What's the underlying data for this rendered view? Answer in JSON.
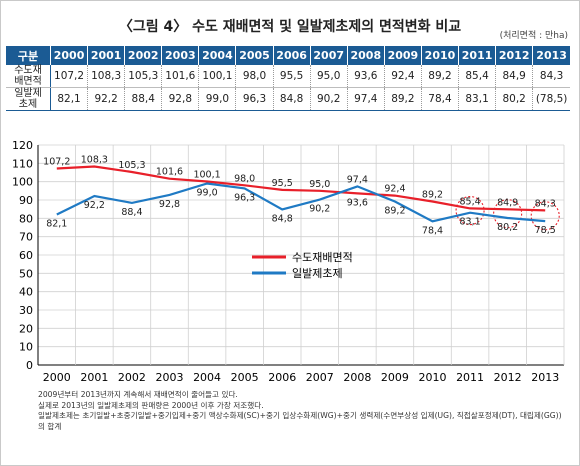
{
  "title": "〈그림 4〉 수도 재배면적 및 일발제초제의 면적변화 비교",
  "unit": "(처리면적 : 만ha)",
  "table": {
    "header": "구분",
    "years": [
      "2000",
      "2001",
      "2002",
      "2003",
      "2004",
      "2005",
      "2006",
      "2007",
      "2008",
      "2009",
      "2010",
      "2011",
      "2012",
      "2013"
    ],
    "rows": [
      {
        "label_line1": "수도재",
        "label_line2": "배면적",
        "values": [
          "107,2",
          "108,3",
          "105,3",
          "101,6",
          "100,1",
          "98,0",
          "95,5",
          "95,0",
          "93,6",
          "92,4",
          "89,2",
          "85,4",
          "84,9",
          "84,3"
        ]
      },
      {
        "label_line1": "일발제",
        "label_line2": "초제",
        "values": [
          "82,1",
          "92,2",
          "88,4",
          "92,8",
          "99,0",
          "96,3",
          "84,8",
          "90,2",
          "97,4",
          "89,2",
          "78,4",
          "83,1",
          "80,2",
          "(78,5)"
        ]
      }
    ]
  },
  "chart_data": {
    "type": "line",
    "x": [
      "2000",
      "2001",
      "2002",
      "2003",
      "2004",
      "2005",
      "2006",
      "2007",
      "2008",
      "2009",
      "2010",
      "2011",
      "2012",
      "2013"
    ],
    "ylim": [
      0,
      120
    ],
    "yticks": [
      0,
      10,
      20,
      30,
      40,
      50,
      60,
      70,
      80,
      90,
      100,
      110,
      120
    ],
    "grid": true,
    "legend_position": "center",
    "series": [
      {
        "name": "수도재배면적",
        "color": "#e8202a",
        "values": [
          107.2,
          108.3,
          105.3,
          101.6,
          100.1,
          98.0,
          95.5,
          95.0,
          93.6,
          92.4,
          89.2,
          85.4,
          84.9,
          84.3
        ],
        "labels": [
          "107,2",
          "108,3",
          "105,3",
          "101,6",
          "100,1",
          "98,0",
          "95,5",
          "95,0",
          "93,6",
          "92,4",
          "89,2",
          "85,4",
          "84,9",
          "84,3"
        ]
      },
      {
        "name": "일발제초제",
        "color": "#1f7ac4",
        "values": [
          82.1,
          92.2,
          88.4,
          92.8,
          99.0,
          96.3,
          84.8,
          90.2,
          97.4,
          89.2,
          78.4,
          83.1,
          80.2,
          78.5
        ],
        "labels": [
          "82,1",
          "92,2",
          "88,4",
          "92,8",
          "99,0",
          "96,3",
          "84,8",
          "90,2",
          "97,4",
          "89,2",
          "78,4",
          "83,1",
          "80,2",
          "78,5"
        ]
      }
    ],
    "highlighted_years": [
      "2011",
      "2012",
      "2013"
    ],
    "highlight_color": "#e8202a"
  },
  "notes": [
    "2009년부터 2013년까지 계속해서 재배면적이 줄어들고 있다.",
    "실제로 2013년의 일발제초제의 판매량은 2000년 이후 가장 저조했다.",
    "일발제초제는 초기일발+초중기일발+중기입제+중기 액상수화제(SC)+중기 입상수화제(WG)+중기 생력제(수면부상성 입제(UG), 직접살포정제(DT), 대립제(GG))",
    "의 합계"
  ]
}
